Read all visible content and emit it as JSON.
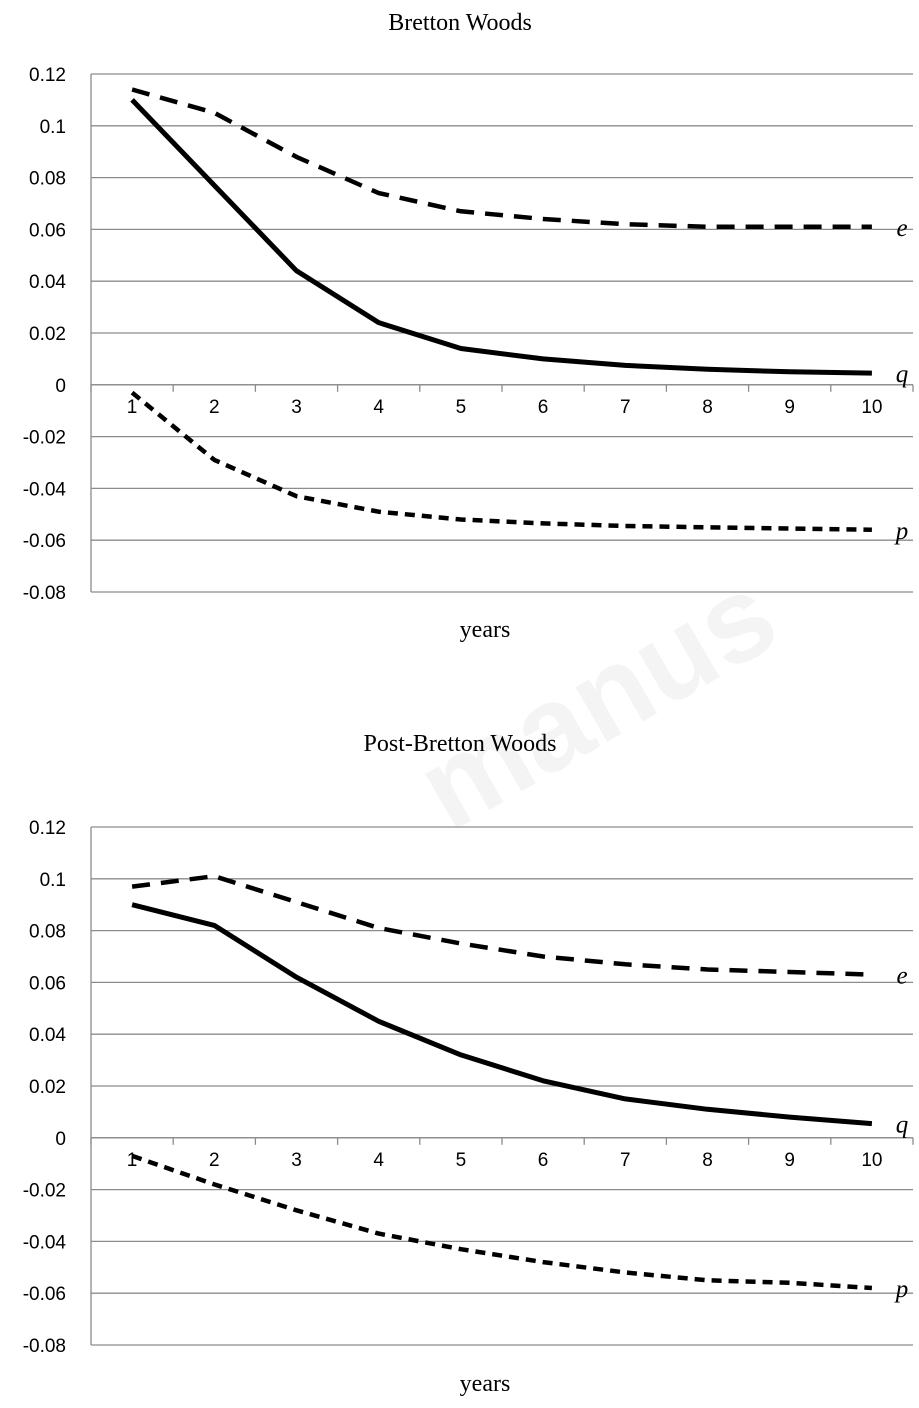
{
  "chart_data": [
    {
      "type": "line",
      "title": "Bretton Woods",
      "xlabel": "years",
      "ylabel": "",
      "x": [
        1,
        2,
        3,
        4,
        5,
        6,
        7,
        8,
        9,
        10
      ],
      "xticks": [
        "1",
        "2",
        "3",
        "4",
        "5",
        "6",
        "7",
        "8",
        "9",
        "10"
      ],
      "ylim": [
        -0.08,
        0.12
      ],
      "yticks": [
        "0.12",
        "0.1",
        "0.08",
        "0.06",
        "0.04",
        "0.02",
        "0",
        "-0.02",
        "-0.04",
        "-0.06",
        "-0.08"
      ],
      "grid": true,
      "series": [
        {
          "name": "e",
          "style": "long-dash",
          "values": [
            0.114,
            0.105,
            0.088,
            0.074,
            0.067,
            0.064,
            0.062,
            0.061,
            0.061,
            0.061
          ]
        },
        {
          "name": "q",
          "style": "solid",
          "values": [
            0.11,
            0.077,
            0.044,
            0.024,
            0.014,
            0.01,
            0.0075,
            0.006,
            0.005,
            0.0045
          ]
        },
        {
          "name": "p",
          "style": "short-dash",
          "values": [
            -0.003,
            -0.029,
            -0.043,
            -0.049,
            -0.052,
            -0.0535,
            -0.0545,
            -0.055,
            -0.0555,
            -0.056
          ]
        }
      ]
    },
    {
      "type": "line",
      "title": "Post-Bretton Woods",
      "xlabel": "years",
      "ylabel": "",
      "x": [
        1,
        2,
        3,
        4,
        5,
        6,
        7,
        8,
        9,
        10
      ],
      "xticks": [
        "1",
        "2",
        "3",
        "4",
        "5",
        "6",
        "7",
        "8",
        "9",
        "10"
      ],
      "ylim": [
        -0.08,
        0.12
      ],
      "yticks": [
        "0.12",
        "0.1",
        "0.08",
        "0.06",
        "0.04",
        "0.02",
        "0",
        "-0.02",
        "-0.04",
        "-0.06",
        "-0.08"
      ],
      "grid": true,
      "series": [
        {
          "name": "e",
          "style": "long-dash",
          "values": [
            0.097,
            0.101,
            0.091,
            0.081,
            0.075,
            0.07,
            0.067,
            0.065,
            0.064,
            0.063
          ]
        },
        {
          "name": "q",
          "style": "solid",
          "values": [
            0.09,
            0.082,
            0.062,
            0.045,
            0.032,
            0.022,
            0.015,
            0.011,
            0.008,
            0.0055
          ]
        },
        {
          "name": "p",
          "style": "short-dash",
          "values": [
            -0.007,
            -0.018,
            -0.028,
            -0.037,
            -0.043,
            -0.048,
            -0.052,
            -0.055,
            -0.056,
            -0.058
          ]
        }
      ]
    }
  ],
  "watermark": "manus"
}
